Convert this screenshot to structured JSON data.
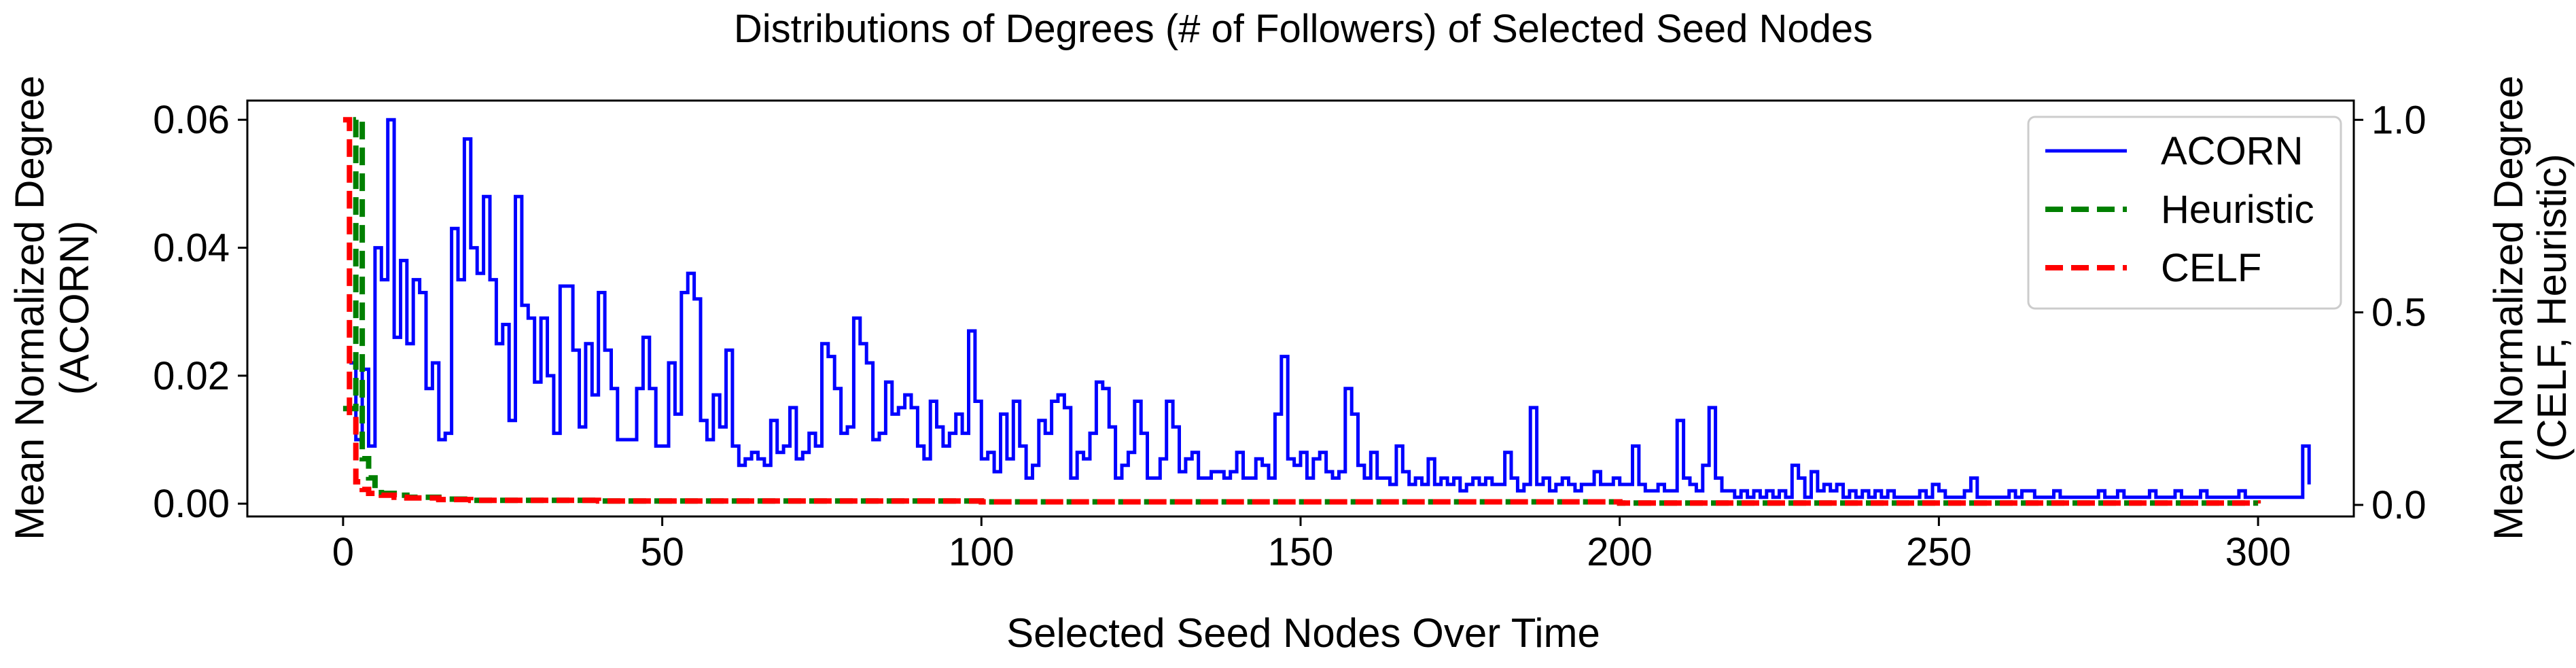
{
  "chart_data": {
    "type": "line",
    "title": "Distributions of Degrees (# of Followers) of Selected Seed Nodes",
    "xlabel": "Selected Seed Nodes Over Time",
    "ylabel_left": [
      "Mean Normalized Degree",
      "(ACORN)"
    ],
    "ylabel_right": [
      "Mean Normalized Degree",
      "(CELF, Heuristic)"
    ],
    "xlim": [
      -15,
      315
    ],
    "ylim_left": [
      -0.002,
      0.063
    ],
    "ylim_right": [
      -0.03,
      1.05
    ],
    "x_ticks": [
      0,
      50,
      100,
      150,
      200,
      250,
      300
    ],
    "x_tick_labels": [
      "0",
      "50",
      "100",
      "150",
      "200",
      "250",
      "300"
    ],
    "y_left_ticks": [
      0.0,
      0.02,
      0.04,
      0.06
    ],
    "y_left_tick_labels": [
      "0.00",
      "0.02",
      "0.04",
      "0.06"
    ],
    "y_right_ticks": [
      0.0,
      0.5,
      1.0
    ],
    "y_right_tick_labels": [
      "0.0",
      "0.5",
      "1.0"
    ],
    "legend_position": "top-right",
    "grid": false,
    "series": [
      {
        "name": "ACORN",
        "axis": "left",
        "color": "#0000ff",
        "style": "solid",
        "step": true,
        "x_start": 1,
        "values": [
          0.022,
          0.01,
          0.021,
          0.009,
          0.04,
          0.035,
          0.06,
          0.026,
          0.038,
          0.025,
          0.035,
          0.033,
          0.018,
          0.022,
          0.01,
          0.011,
          0.043,
          0.035,
          0.057,
          0.04,
          0.036,
          0.048,
          0.035,
          0.025,
          0.028,
          0.013,
          0.048,
          0.031,
          0.029,
          0.019,
          0.029,
          0.02,
          0.011,
          0.034,
          0.034,
          0.024,
          0.012,
          0.025,
          0.017,
          0.033,
          0.024,
          0.018,
          0.01,
          0.01,
          0.01,
          0.018,
          0.026,
          0.018,
          0.009,
          0.009,
          0.022,
          0.014,
          0.033,
          0.036,
          0.032,
          0.013,
          0.01,
          0.017,
          0.012,
          0.024,
          0.009,
          0.006,
          0.007,
          0.008,
          0.007,
          0.006,
          0.013,
          0.008,
          0.009,
          0.015,
          0.007,
          0.008,
          0.011,
          0.009,
          0.025,
          0.023,
          0.018,
          0.011,
          0.012,
          0.029,
          0.025,
          0.022,
          0.01,
          0.011,
          0.019,
          0.014,
          0.015,
          0.017,
          0.015,
          0.009,
          0.007,
          0.016,
          0.012,
          0.009,
          0.011,
          0.014,
          0.011,
          0.027,
          0.016,
          0.007,
          0.008,
          0.005,
          0.014,
          0.007,
          0.016,
          0.009,
          0.004,
          0.006,
          0.013,
          0.011,
          0.016,
          0.017,
          0.015,
          0.004,
          0.008,
          0.007,
          0.011,
          0.019,
          0.018,
          0.012,
          0.004,
          0.006,
          0.008,
          0.016,
          0.011,
          0.004,
          0.004,
          0.007,
          0.016,
          0.012,
          0.005,
          0.007,
          0.008,
          0.004,
          0.004,
          0.005,
          0.005,
          0.004,
          0.005,
          0.008,
          0.004,
          0.004,
          0.007,
          0.006,
          0.004,
          0.014,
          0.023,
          0.007,
          0.006,
          0.008,
          0.004,
          0.007,
          0.008,
          0.005,
          0.004,
          0.005,
          0.018,
          0.014,
          0.006,
          0.004,
          0.008,
          0.004,
          0.004,
          0.003,
          0.009,
          0.005,
          0.003,
          0.004,
          0.003,
          0.007,
          0.003,
          0.004,
          0.003,
          0.004,
          0.002,
          0.003,
          0.004,
          0.003,
          0.004,
          0.003,
          0.003,
          0.008,
          0.004,
          0.002,
          0.003,
          0.015,
          0.003,
          0.004,
          0.002,
          0.003,
          0.004,
          0.003,
          0.002,
          0.003,
          0.003,
          0.005,
          0.003,
          0.003,
          0.004,
          0.003,
          0.003,
          0.009,
          0.003,
          0.002,
          0.002,
          0.003,
          0.002,
          0.002,
          0.013,
          0.004,
          0.003,
          0.002,
          0.006,
          0.015,
          0.004,
          0.002,
          0.002,
          0.001,
          0.002,
          0.001,
          0.002,
          0.001,
          0.002,
          0.001,
          0.002,
          0.001,
          0.006,
          0.004,
          0.001,
          0.005,
          0.002,
          0.003,
          0.002,
          0.003,
          0.001,
          0.002,
          0.001,
          0.002,
          0.001,
          0.002,
          0.001,
          0.002,
          0.001,
          0.001,
          0.001,
          0.001,
          0.002,
          0.001,
          0.003,
          0.002,
          0.001,
          0.001,
          0.001,
          0.002,
          0.004,
          0.001,
          0.001,
          0.001,
          0.001,
          0.001,
          0.002,
          0.001,
          0.002,
          0.002,
          0.001,
          0.001,
          0.001,
          0.002,
          0.001,
          0.001,
          0.001,
          0.001,
          0.001,
          0.001,
          0.002,
          0.001,
          0.001,
          0.002,
          0.001,
          0.001,
          0.001,
          0.001,
          0.002,
          0.001,
          0.001,
          0.001,
          0.002,
          0.001,
          0.001,
          0.001,
          0.002,
          0.001,
          0.001,
          0.001,
          0.001,
          0.001,
          0.002,
          0.001,
          0.001,
          0.001,
          0.001,
          0.001,
          0.001,
          0.001,
          0.001,
          0.001,
          0.009,
          0.003
        ]
      },
      {
        "name": "Heuristic",
        "axis": "right",
        "color": "#008000",
        "style": "dashed",
        "step": true,
        "points": [
          [
            0,
            0.25
          ],
          [
            1,
            0.25
          ],
          [
            2,
            1.0
          ],
          [
            3,
            0.12
          ],
          [
            4,
            0.07
          ],
          [
            5,
            0.04
          ],
          [
            6,
            0.03
          ],
          [
            8,
            0.025
          ],
          [
            10,
            0.02
          ],
          [
            15,
            0.015
          ],
          [
            20,
            0.012
          ],
          [
            40,
            0.01
          ],
          [
            100,
            0.008
          ],
          [
            200,
            0.005
          ],
          [
            300,
            0.004
          ]
        ]
      },
      {
        "name": "CELF",
        "axis": "right",
        "color": "#ff0000",
        "style": "dashed",
        "step": true,
        "points": [
          [
            0,
            1.0
          ],
          [
            1,
            0.23
          ],
          [
            2,
            0.06
          ],
          [
            3,
            0.04
          ],
          [
            4,
            0.03
          ],
          [
            6,
            0.025
          ],
          [
            8,
            0.02
          ],
          [
            10,
            0.018
          ],
          [
            15,
            0.014
          ],
          [
            20,
            0.012
          ],
          [
            40,
            0.01
          ],
          [
            100,
            0.008
          ],
          [
            200,
            0.005
          ],
          [
            300,
            0.004
          ]
        ]
      }
    ]
  }
}
